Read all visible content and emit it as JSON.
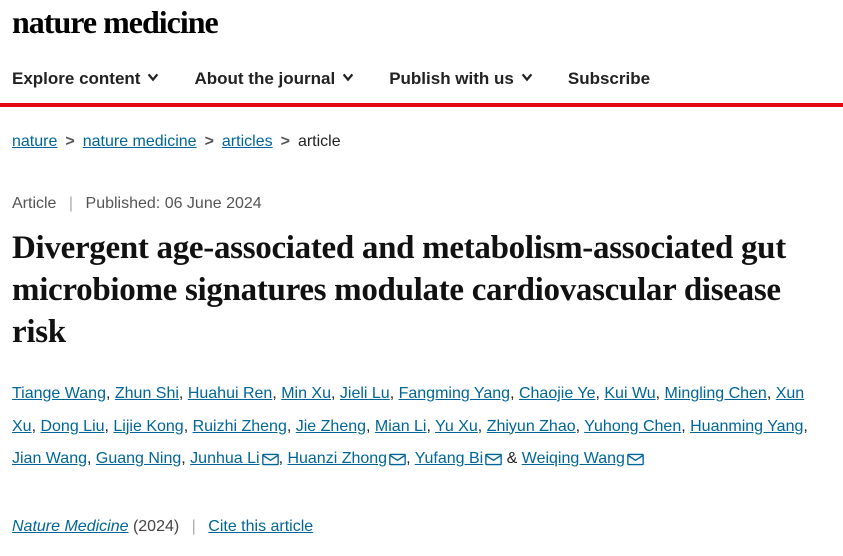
{
  "brand": "nature medicine",
  "nav": {
    "explore": "Explore content",
    "about": "About the journal",
    "publish": "Publish with us",
    "subscribe": "Subscribe"
  },
  "breadcrumbs": {
    "items": [
      "nature",
      "nature medicine",
      "articles"
    ],
    "current": "article"
  },
  "meta": {
    "type": "Article",
    "published_label": "Published:",
    "published_date": "06 June 2024"
  },
  "title": "Divergent age-associated and metabolism-associated gut microbiome signatures modulate cardiovascular disease risk",
  "authors": [
    {
      "name": "Tiange Wang"
    },
    {
      "name": "Zhun Shi"
    },
    {
      "name": "Huahui Ren"
    },
    {
      "name": "Min Xu"
    },
    {
      "name": "Jieli Lu"
    },
    {
      "name": "Fangming Yang"
    },
    {
      "name": "Chaojie Ye"
    },
    {
      "name": "Kui Wu"
    },
    {
      "name": "Mingling Chen"
    },
    {
      "name": "Xun Xu"
    },
    {
      "name": "Dong Liu"
    },
    {
      "name": "Lijie Kong"
    },
    {
      "name": "Ruizhi Zheng"
    },
    {
      "name": "Jie Zheng"
    },
    {
      "name": "Mian Li"
    },
    {
      "name": "Yu Xu"
    },
    {
      "name": "Zhiyun Zhao"
    },
    {
      "name": "Yuhong Chen"
    },
    {
      "name": "Huanming Yang"
    },
    {
      "name": "Jian Wang"
    },
    {
      "name": "Guang Ning"
    },
    {
      "name": "Junhua Li",
      "mail": true
    },
    {
      "name": "Huanzi Zhong",
      "mail": true
    },
    {
      "name": "Yufang Bi",
      "mail": true
    },
    {
      "name": "Weiqing Wang",
      "mail": true
    }
  ],
  "footer": {
    "journal": "Nature Medicine",
    "year": "(2024)",
    "cite": "Cite this article"
  },
  "colors": {
    "accent_red": "#e30613",
    "link": "#006699",
    "text": "#222222",
    "muted": "#555555"
  }
}
